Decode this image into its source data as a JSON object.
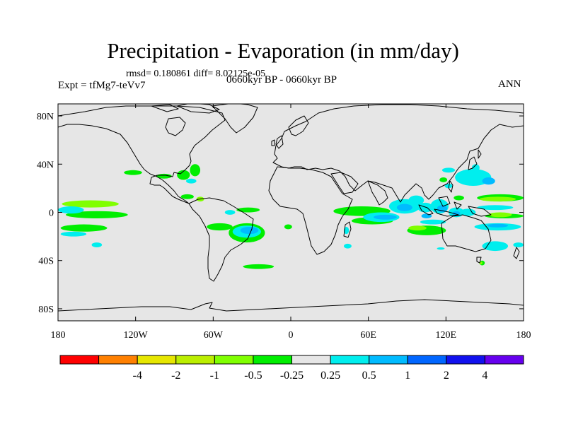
{
  "figure": {
    "title": "Precipitation - Evaporation (in mm/day)",
    "stats": "rmsd= 0.180861 diff= 8.02125e-05",
    "experiment": "Expt = tfMg7-teVv7",
    "period": "0660kyr BP - 0660kyr BP",
    "season": "ANN"
  },
  "map": {
    "projection": "cylindrical-equidistant",
    "lon_range": [
      -180,
      180
    ],
    "lat_range": [
      -90,
      90
    ],
    "land_ocean_fill": "#e6e6e6",
    "coastline_color": "#000000",
    "lon_ticks": [
      {
        "value": -180,
        "label": "180"
      },
      {
        "value": -120,
        "label": "120W"
      },
      {
        "value": -60,
        "label": "60W"
      },
      {
        "value": 0,
        "label": "0"
      },
      {
        "value": 60,
        "label": "60E"
      },
      {
        "value": 120,
        "label": "120E"
      },
      {
        "value": 180,
        "label": "180"
      }
    ],
    "lat_ticks": [
      {
        "value": 80,
        "label": "80N"
      },
      {
        "value": 40,
        "label": "40N"
      },
      {
        "value": 0,
        "label": "0"
      },
      {
        "value": -40,
        "label": "40S"
      },
      {
        "value": -80,
        "label": "80S"
      }
    ]
  },
  "colorbar": {
    "bins": [
      {
        "color": "#ff0000"
      },
      {
        "color": "#ff8000"
      },
      {
        "color": "#e6e600"
      },
      {
        "color": "#bbee00"
      },
      {
        "color": "#80ff00"
      },
      {
        "color": "#00ee00"
      },
      {
        "color": "#e6e6e6"
      },
      {
        "color": "#00eeee"
      },
      {
        "color": "#00bbff"
      },
      {
        "color": "#0066ff"
      },
      {
        "color": "#1111ee"
      },
      {
        "color": "#6600ee"
      }
    ],
    "labels": [
      {
        "text": "-4",
        "boundary": 2
      },
      {
        "text": "-2",
        "boundary": 3
      },
      {
        "text": "-1",
        "boundary": 4
      },
      {
        "text": "-0.5",
        "boundary": 5
      },
      {
        "text": "-0.25",
        "boundary": 6
      },
      {
        "text": "0.25",
        "boundary": 7
      },
      {
        "text": "0.5",
        "boundary": 8
      },
      {
        "text": "1",
        "boundary": 9
      },
      {
        "text": "2",
        "boundary": 10
      },
      {
        "text": "4",
        "boundary": 11
      }
    ]
  },
  "anomaly_regions": [
    {
      "color": "#80ff00",
      "lon": -155,
      "lat": 7,
      "rx": 22,
      "ry": 3
    },
    {
      "color": "#00ee00",
      "lon": -150,
      "lat": -2,
      "rx": 24,
      "ry": 3
    },
    {
      "color": "#00eeee",
      "lon": -170,
      "lat": 2,
      "rx": 10,
      "ry": 3
    },
    {
      "color": "#00ee00",
      "lon": -160,
      "lat": -13,
      "rx": 18,
      "ry": 3
    },
    {
      "color": "#00eeee",
      "lon": -168,
      "lat": -18,
      "rx": 10,
      "ry": 2
    },
    {
      "color": "#00ee00",
      "lon": -122,
      "lat": 33,
      "rx": 7,
      "ry": 2
    },
    {
      "color": "#00ee00",
      "lon": -98,
      "lat": 30,
      "rx": 6,
      "ry": 2
    },
    {
      "color": "#00ee00",
      "lon": -83,
      "lat": 31,
      "rx": 5,
      "ry": 4
    },
    {
      "color": "#00ee00",
      "lon": -74,
      "lat": 35,
      "rx": 4,
      "ry": 5
    },
    {
      "color": "#00eeee",
      "lon": -77,
      "lat": 26,
      "rx": 4,
      "ry": 2
    },
    {
      "color": "#00ee00",
      "lon": -80,
      "lat": 13,
      "rx": 5,
      "ry": 2
    },
    {
      "color": "#80ff00",
      "lon": -70,
      "lat": 11,
      "rx": 3,
      "ry": 2
    },
    {
      "color": "#00ee00",
      "lon": -33,
      "lat": 2,
      "rx": 9,
      "ry": 2
    },
    {
      "color": "#00eeee",
      "lon": -47,
      "lat": 0,
      "rx": 4,
      "ry": 2
    },
    {
      "color": "#00ee00",
      "lon": -55,
      "lat": -12,
      "rx": 10,
      "ry": 3
    },
    {
      "color": "#00ee00",
      "lon": -34,
      "lat": -17,
      "rx": 14,
      "ry": 8
    },
    {
      "color": "#00eeee",
      "lon": -34,
      "lat": -16,
      "rx": 11,
      "ry": 5
    },
    {
      "color": "#00bbff",
      "lon": -32,
      "lat": -15,
      "rx": 7,
      "ry": 3
    },
    {
      "color": "#00ee00",
      "lon": -2,
      "lat": -12,
      "rx": 3,
      "ry": 2
    },
    {
      "color": "#00ee00",
      "lon": -25,
      "lat": -45,
      "rx": 12,
      "ry": 2
    },
    {
      "color": "#00eeee",
      "lon": -150,
      "lat": -27,
      "rx": 4,
      "ry": 2
    },
    {
      "color": "#00ee00",
      "lon": 55,
      "lat": 1,
      "rx": 22,
      "ry": 4
    },
    {
      "color": "#00ee00",
      "lon": 63,
      "lat": -7,
      "rx": 16,
      "ry": 3
    },
    {
      "color": "#00eeee",
      "lon": 70,
      "lat": -4,
      "rx": 14,
      "ry": 4
    },
    {
      "color": "#00bbff",
      "lon": 73,
      "lat": -4,
      "rx": 9,
      "ry": 2
    },
    {
      "color": "#00eeee",
      "lon": 88,
      "lat": 5,
      "rx": 12,
      "ry": 6
    },
    {
      "color": "#00bbff",
      "lon": 88,
      "lat": 4,
      "rx": 6,
      "ry": 3
    },
    {
      "color": "#00eeee",
      "lon": 97,
      "lat": 10,
      "rx": 6,
      "ry": 4
    },
    {
      "color": "#00eeee",
      "lon": 104,
      "lat": 4,
      "rx": 6,
      "ry": 4
    },
    {
      "color": "#00eeee",
      "lon": 115,
      "lat": 5,
      "rx": 7,
      "ry": 6
    },
    {
      "color": "#00bbff",
      "lon": 117,
      "lat": 3,
      "rx": 4,
      "ry": 3
    },
    {
      "color": "#00bbff",
      "lon": 105,
      "lat": -3,
      "rx": 4,
      "ry": 2
    },
    {
      "color": "#00eeee",
      "lon": 110,
      "lat": -8,
      "rx": 10,
      "ry": 2
    },
    {
      "color": "#00eeee",
      "lon": 128,
      "lat": 0,
      "rx": 6,
      "ry": 4
    },
    {
      "color": "#00bbff",
      "lon": 128,
      "lat": -1,
      "rx": 3,
      "ry": 2
    },
    {
      "color": "#00ee00",
      "lon": 105,
      "lat": -15,
      "rx": 15,
      "ry": 4
    },
    {
      "color": "#80ff00",
      "lon": 98,
      "lat": -13,
      "rx": 7,
      "ry": 2
    },
    {
      "color": "#00eeee",
      "lon": 122,
      "lat": 22,
      "rx": 3,
      "ry": 2
    },
    {
      "color": "#00ee00",
      "lon": 118,
      "lat": 27,
      "rx": 3,
      "ry": 2
    },
    {
      "color": "#00ee00",
      "lon": 130,
      "lat": 12,
      "rx": 4,
      "ry": 2
    },
    {
      "color": "#00eeee",
      "lon": 141,
      "lat": 29,
      "rx": 14,
      "ry": 7
    },
    {
      "color": "#00bbff",
      "lon": 153,
      "lat": 26,
      "rx": 5,
      "ry": 3
    },
    {
      "color": "#00eeee",
      "lon": 122,
      "lat": 35,
      "rx": 5,
      "ry": 2
    },
    {
      "color": "#00eeee",
      "lon": 143,
      "lat": 37,
      "rx": 3,
      "ry": 3
    },
    {
      "color": "#00ee00",
      "lon": 162,
      "lat": 12,
      "rx": 18,
      "ry": 3
    },
    {
      "color": "#80ff00",
      "lon": 160,
      "lat": 11,
      "rx": 14,
      "ry": 2
    },
    {
      "color": "#00eeee",
      "lon": 158,
      "lat": 4,
      "rx": 14,
      "ry": 2
    },
    {
      "color": "#00eeee",
      "lon": 137,
      "lat": 0,
      "rx": 6,
      "ry": 3
    },
    {
      "color": "#00ee00",
      "lon": 165,
      "lat": -3,
      "rx": 15,
      "ry": 2
    },
    {
      "color": "#80ff00",
      "lon": 162,
      "lat": -2,
      "rx": 9,
      "ry": 2
    },
    {
      "color": "#00eeee",
      "lon": 160,
      "lat": -12,
      "rx": 18,
      "ry": 3
    },
    {
      "color": "#00bbff",
      "lon": 160,
      "lat": -11,
      "rx": 8,
      "ry": 1.5
    },
    {
      "color": "#00eeee",
      "lon": 158,
      "lat": -28,
      "rx": 10,
      "ry": 4
    },
    {
      "color": "#00eeee",
      "lon": 176,
      "lat": -27,
      "rx": 4,
      "ry": 2
    },
    {
      "color": "#00eeee",
      "lon": 116,
      "lat": -30,
      "rx": 3,
      "ry": 1
    },
    {
      "color": "#00ee00",
      "lon": 148,
      "lat": -42,
      "rx": 2,
      "ry": 2
    },
    {
      "color": "#80ff00",
      "lon": 147,
      "lat": -42,
      "rx": 1.3,
      "ry": 1.2
    },
    {
      "color": "#00eeee",
      "lon": 44,
      "lat": -28,
      "rx": 3,
      "ry": 2
    },
    {
      "color": "#00eeee",
      "lon": 43,
      "lat": -15,
      "rx": 2,
      "ry": 3
    }
  ]
}
